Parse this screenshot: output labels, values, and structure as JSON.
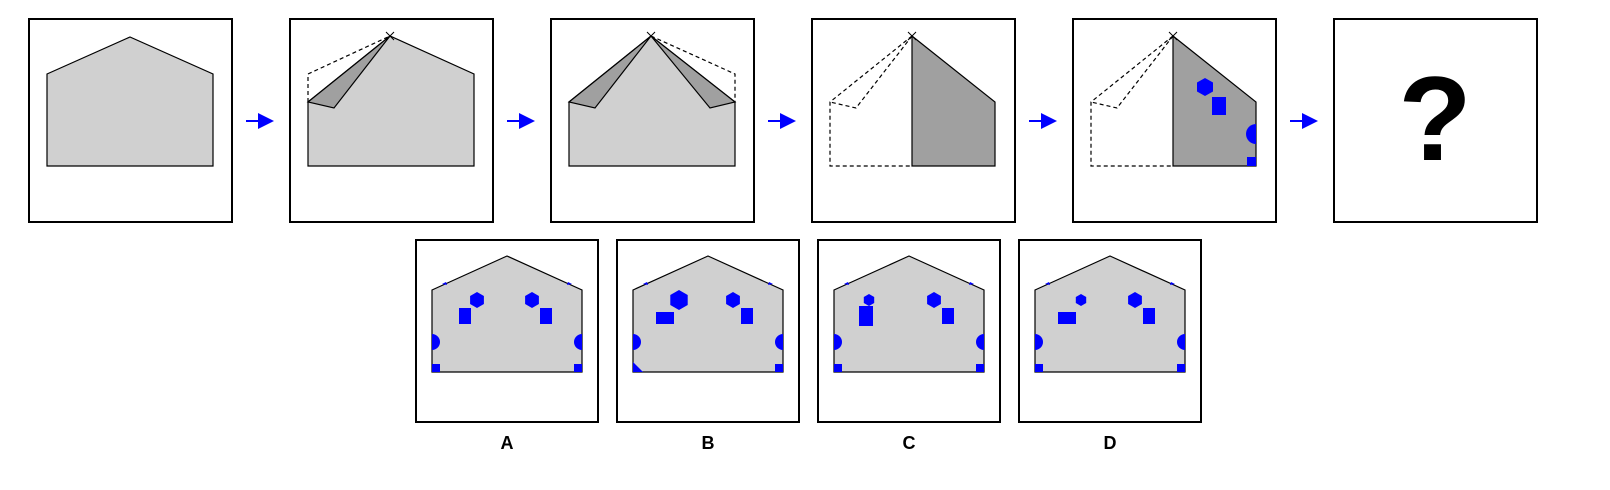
{
  "question_mark": "?",
  "options": [
    {
      "label": "A"
    },
    {
      "label": "B"
    },
    {
      "label": "C"
    },
    {
      "label": "D"
    }
  ],
  "colors": {
    "paper": "#d0d0d0",
    "folded": "#a0a0a0",
    "punch": "#0000ff",
    "arrow": "#0000ff"
  }
}
